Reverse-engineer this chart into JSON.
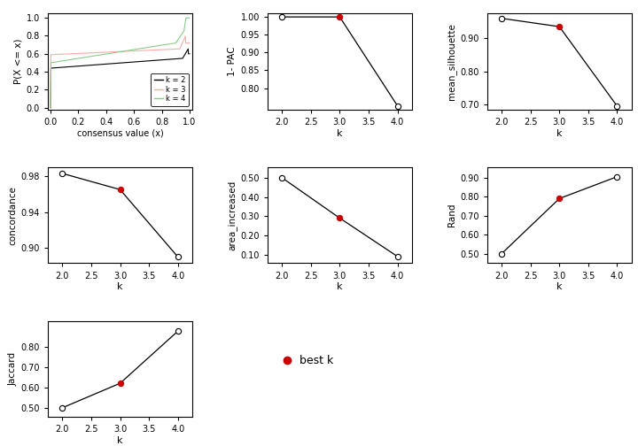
{
  "k_values": [
    2,
    3,
    4
  ],
  "pac": {
    "values": [
      1.0,
      1.0,
      0.75
    ],
    "ylim": [
      0.74,
      1.01
    ],
    "yticks": [
      0.8,
      0.85,
      0.9,
      0.95,
      1.0
    ]
  },
  "silhouette": {
    "values": [
      0.96,
      0.935,
      0.695
    ],
    "ylim": [
      0.685,
      0.975
    ],
    "yticks": [
      0.7,
      0.8,
      0.9
    ]
  },
  "concordance": {
    "values": [
      0.983,
      0.965,
      0.89
    ],
    "ylim": [
      0.883,
      0.99
    ],
    "yticks": [
      0.9,
      0.94,
      0.98
    ]
  },
  "area_increased": {
    "values": [
      0.5,
      0.29,
      0.09
    ],
    "ylim": [
      0.055,
      0.555
    ],
    "yticks": [
      0.1,
      0.2,
      0.3,
      0.4,
      0.5
    ]
  },
  "rand": {
    "values": [
      0.5,
      0.79,
      0.905
    ],
    "ylim": [
      0.45,
      0.955
    ],
    "yticks": [
      0.5,
      0.6,
      0.7,
      0.8,
      0.9
    ]
  },
  "jaccard": {
    "values": [
      0.5,
      0.62,
      0.875
    ],
    "ylim": [
      0.455,
      0.925
    ],
    "yticks": [
      0.5,
      0.6,
      0.7,
      0.8
    ]
  },
  "best_k": 3,
  "colors": {
    "k2": "#000000",
    "k3": "#ffaaaa",
    "k4": "#88cc88",
    "line": "#000000",
    "best_k_dot": "#cc0000",
    "open_dot": "#000000"
  }
}
